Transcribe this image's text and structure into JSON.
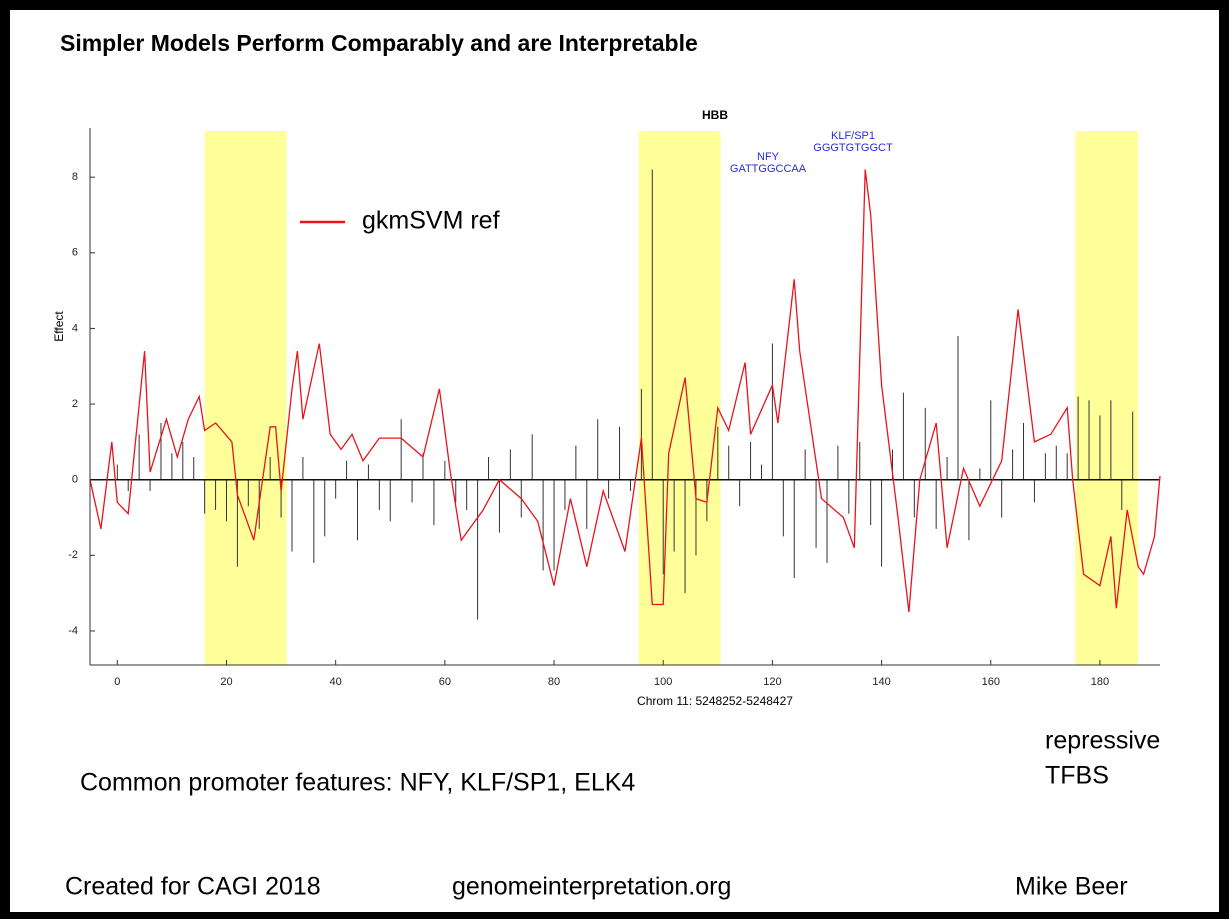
{
  "slide": {
    "title": "Simpler Models Perform Comparably and are Interpretable",
    "note": "Common promoter features: NFY, KLF/SP1, ELK4",
    "side_note": [
      "repressive",
      "TFBS"
    ],
    "footer": [
      "Created for CAGI 2018",
      "genomeinterpretation.org",
      "Mike Beer"
    ]
  },
  "chart_data": {
    "type": "line",
    "title": "HBB",
    "x_label": "Chrom 11: 5248252-5248427",
    "y_label": "Effect",
    "xlim": [
      -5,
      191
    ],
    "ylim": [
      -4.9,
      9.3
    ],
    "xticks": [
      0,
      20,
      40,
      60,
      80,
      100,
      120,
      140,
      160,
      180
    ],
    "yticks": [
      -4,
      -2,
      0,
      2,
      4,
      6,
      8
    ],
    "legend": "upper left",
    "highlights": [
      [
        16,
        31
      ],
      [
        95.5,
        110.5
      ],
      [
        175.5,
        187
      ]
    ],
    "highlight_color": "#ffff99",
    "annotations": [
      "NFY",
      "GATTGGCCAA",
      "KLF/SP1",
      "GGGTGTGGCT"
    ],
    "series": [
      {
        "name": "gkmSVM ref",
        "color": "#e8141b",
        "style": "line",
        "x": [
          -5,
          -3,
          -1,
          0,
          2,
          5,
          6,
          9,
          11,
          13,
          15,
          16,
          18,
          21,
          22,
          25,
          28,
          29,
          30,
          32,
          33,
          34,
          37,
          39,
          41,
          43,
          45,
          48,
          52,
          56,
          59,
          61,
          63,
          67,
          70,
          74,
          77,
          80,
          83,
          86,
          89,
          93,
          96,
          98,
          100,
          101,
          104,
          106,
          108,
          110,
          112,
          115,
          116,
          120,
          121,
          124,
          125,
          129,
          133,
          135,
          137,
          138,
          140,
          143,
          145,
          147,
          150,
          152,
          155,
          158,
          162,
          165,
          168,
          171,
          174,
          175,
          177,
          180,
          182,
          183,
          185,
          187,
          188,
          190,
          191
        ],
        "values": [
          0,
          -1.3,
          1.0,
          -0.6,
          -0.9,
          3.4,
          0.2,
          1.6,
          0.6,
          1.6,
          2.2,
          1.3,
          1.5,
          1.0,
          -0.4,
          -1.6,
          1.4,
          1.4,
          -0.3,
          2.4,
          3.4,
          1.6,
          3.6,
          1.2,
          0.8,
          1.2,
          0.5,
          1.1,
          1.1,
          0.6,
          2.4,
          0.2,
          -1.6,
          -0.8,
          0.0,
          -0.5,
          -1.1,
          -2.8,
          -0.5,
          -2.3,
          -0.3,
          -1.9,
          1.1,
          -3.3,
          -3.3,
          0.7,
          2.7,
          -0.5,
          -0.6,
          1.9,
          1.3,
          3.1,
          1.2,
          2.5,
          1.5,
          5.3,
          3.4,
          -0.5,
          -1.0,
          -1.8,
          8.2,
          7.0,
          2.5,
          -1.0,
          -3.5,
          0.0,
          1.5,
          -1.8,
          0.3,
          -0.7,
          0.5,
          4.5,
          1.0,
          1.2,
          1.9,
          0.0,
          -2.5,
          -2.8,
          -1.5,
          -3.4,
          -0.8,
          -2.3,
          -2.5,
          -1.5,
          0.1
        ]
      },
      {
        "color": "#333333",
        "style": "stem",
        "x": [
          0,
          2,
          4,
          6,
          8,
          10,
          12,
          14,
          16,
          18,
          20,
          22,
          24,
          26,
          28,
          30,
          32,
          34,
          36,
          38,
          40,
          42,
          44,
          46,
          48,
          50,
          52,
          54,
          56,
          58,
          60,
          62,
          64,
          66,
          68,
          70,
          72,
          74,
          76,
          78,
          80,
          82,
          84,
          86,
          88,
          90,
          92,
          94,
          96,
          98,
          100,
          102,
          104,
          106,
          108,
          110,
          112,
          114,
          116,
          118,
          120,
          122,
          124,
          126,
          128,
          130,
          132,
          134,
          136,
          138,
          140,
          142,
          144,
          146,
          148,
          150,
          152,
          154,
          156,
          158,
          160,
          162,
          164,
          166,
          168,
          170,
          172,
          174,
          176,
          178,
          180,
          182,
          184,
          186
        ],
        "values": [
          0.4,
          -0.3,
          1.2,
          -0.3,
          1.5,
          0.7,
          1.0,
          0.6,
          -0.9,
          -0.8,
          -1.1,
          -2.3,
          -0.7,
          -1.3,
          0.6,
          -1.0,
          -1.9,
          0.6,
          -2.2,
          -1.5,
          -0.5,
          0.5,
          -1.6,
          0.4,
          -0.8,
          -1.1,
          1.6,
          -0.6,
          0.7,
          -1.2,
          0.5,
          -0.6,
          -0.8,
          -3.7,
          0.6,
          -1.4,
          0.8,
          -1.0,
          1.2,
          -2.4,
          -2.4,
          -0.8,
          0.9,
          -1.3,
          1.6,
          -0.5,
          1.4,
          -0.3,
          2.4,
          8.2,
          -2.5,
          -1.9,
          -3.0,
          -2.0,
          -1.1,
          1.4,
          0.9,
          -0.7,
          1.0,
          0.4,
          3.6,
          -1.5,
          -2.6,
          0.8,
          -1.8,
          -2.2,
          0.9,
          -0.9,
          1.0,
          -1.2,
          -2.3,
          0.8,
          2.3,
          -1.0,
          1.9,
          -1.3,
          0.6,
          3.8,
          -1.6,
          0.3,
          2.1,
          -1.0,
          0.8,
          1.5,
          -0.6,
          0.7,
          0.9,
          0.7,
          2.2,
          2.1,
          1.7,
          2.1,
          -0.8,
          1.8
        ]
      }
    ]
  }
}
